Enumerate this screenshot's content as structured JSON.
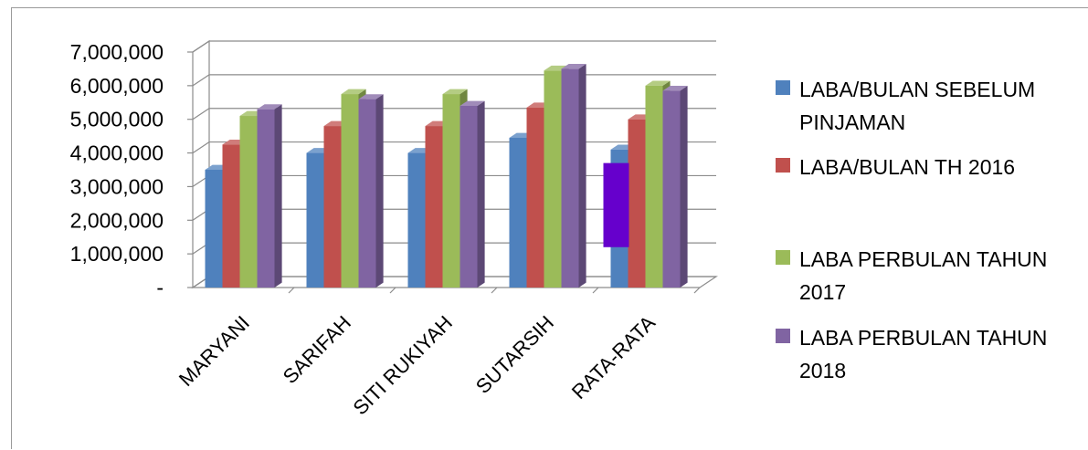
{
  "chart_data": {
    "type": "bar",
    "title": "",
    "xlabel": "",
    "ylabel": "",
    "categories": [
      "MARYANI",
      "SARIFAH",
      "SITI RUKIYAH",
      "SUTARSIH",
      "RATA-RATA"
    ],
    "series": [
      {
        "name": "LABA/BULAN SEBELUM PINJAMAN",
        "values": [
          3500000,
          4000000,
          4000000,
          4450000,
          4100000
        ],
        "color": "#4f81bd"
      },
      {
        "name": "LABA/BULAN TH 2016",
        "values": [
          4250000,
          4800000,
          4800000,
          5350000,
          5000000
        ],
        "color": "#c0504d"
      },
      {
        "name": "LABA PERBULAN TAHUN 2017",
        "values": [
          5100000,
          5750000,
          5750000,
          6450000,
          6000000
        ],
        "color": "#9bbb59"
      },
      {
        "name": "LABA PERBULAN TAHUN 2018",
        "values": [
          5300000,
          5600000,
          5400000,
          6500000,
          5850000
        ],
        "color": "#8064a2"
      }
    ],
    "ylim": [
      0,
      7000000
    ],
    "yticks": [
      "-",
      "1,000,000",
      "2,000,000",
      "3,000,000",
      "4,000,000",
      "5,000,000",
      "6,000,000",
      "7,000,000"
    ],
    "grid": true,
    "legend_position": "right",
    "annotations": [
      {
        "type": "highlight-rectangle",
        "color": "#6600cc",
        "category": "RATA-RATA",
        "from": 1200000,
        "to": 3700000
      }
    ]
  }
}
